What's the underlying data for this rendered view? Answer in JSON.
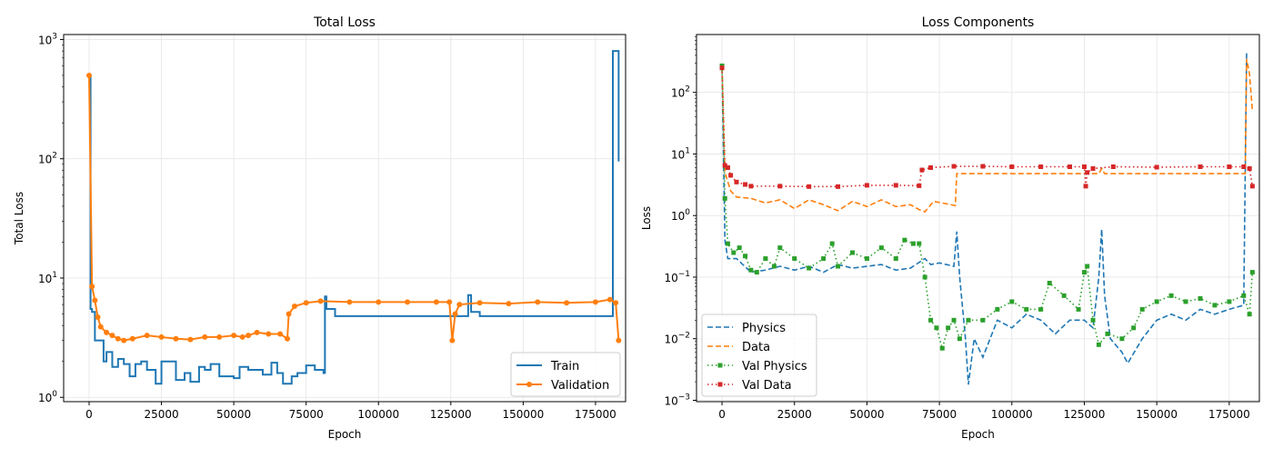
{
  "chart_data": [
    {
      "type": "line",
      "title": "Total Loss",
      "xlabel": "Epoch",
      "ylabel": "Total Loss",
      "yscale": "log",
      "xlim": [
        -8800,
        185400
      ],
      "ylim": [
        0.92,
        1100
      ],
      "grid": true,
      "legend": "lower-right",
      "xticks": [
        0,
        25000,
        50000,
        75000,
        100000,
        125000,
        150000,
        175000
      ],
      "yticks": [
        {
          "v": 1,
          "b": "10",
          "e": "0"
        },
        {
          "v": 10,
          "b": "10",
          "e": "1"
        },
        {
          "v": 100,
          "b": "10",
          "e": "2"
        },
        {
          "v": 1000,
          "b": "10",
          "e": "3"
        }
      ],
      "series": [
        {
          "name": "Train",
          "color": "#1f77b4",
          "style": "solid",
          "marker": "none",
          "step": true,
          "x": [
            0,
            500,
            1000,
            2000,
            5000,
            6000,
            8000,
            10000,
            12000,
            14000,
            16000,
            18000,
            20000,
            23000,
            25000,
            28000,
            30000,
            33000,
            35000,
            38000,
            40000,
            42000,
            45000,
            50000,
            52000,
            55000,
            60000,
            63000,
            65000,
            67000,
            70000,
            72000,
            75000,
            78000,
            81000,
            81500,
            82000,
            85000,
            130500,
            131000,
            132000,
            135000,
            180500,
            181000,
            183000
          ],
          "y": [
            500,
            5.5,
            5.2,
            3,
            2.0,
            2.4,
            1.8,
            2.1,
            1.9,
            1.5,
            1.9,
            2.0,
            1.7,
            1.3,
            2.0,
            2.0,
            1.4,
            1.6,
            1.35,
            1.8,
            1.7,
            1.9,
            1.5,
            1.45,
            1.8,
            1.7,
            1.55,
            1.95,
            1.6,
            1.3,
            1.5,
            1.6,
            1.85,
            1.7,
            1.6,
            7.0,
            5.5,
            4.8,
            4.8,
            7.2,
            5.2,
            4.8,
            4.8,
            800,
            95
          ]
        },
        {
          "name": "Validation",
          "color": "#ff7f0e",
          "style": "solid",
          "marker": "circle",
          "x": [
            0,
            1000,
            2000,
            3000,
            4000,
            6000,
            8000,
            10000,
            12000,
            15000,
            20000,
            25000,
            30000,
            35000,
            40000,
            45000,
            50000,
            53000,
            55000,
            58000,
            62000,
            66000,
            68500,
            69000,
            71000,
            75000,
            80000,
            90000,
            100000,
            110000,
            120000,
            124500,
            125500,
            126500,
            128000,
            135000,
            145000,
            155000,
            165000,
            175000,
            180000,
            182000,
            183000
          ],
          "y": [
            500,
            8.5,
            6.5,
            4.7,
            3.9,
            3.5,
            3.3,
            3.1,
            3.0,
            3.1,
            3.3,
            3.2,
            3.1,
            3.05,
            3.2,
            3.2,
            3.3,
            3.2,
            3.3,
            3.5,
            3.4,
            3.4,
            3.1,
            5.0,
            5.8,
            6.2,
            6.4,
            6.3,
            6.3,
            6.3,
            6.3,
            6.3,
            3.0,
            5.0,
            6.0,
            6.2,
            6.1,
            6.3,
            6.2,
            6.3,
            6.6,
            6.2,
            3.0
          ]
        }
      ]
    },
    {
      "type": "line",
      "title": "Loss Components",
      "xlabel": "Epoch",
      "ylabel": "Loss",
      "yscale": "log",
      "xlim": [
        -8800,
        185400
      ],
      "ylim": [
        0.00095,
        870
      ],
      "grid": true,
      "legend": "lower-left",
      "xticks": [
        0,
        25000,
        50000,
        75000,
        100000,
        125000,
        150000,
        175000
      ],
      "yticks": [
        {
          "v": 0.001,
          "b": "10",
          "e": "−3"
        },
        {
          "v": 0.01,
          "b": "10",
          "e": "−2"
        },
        {
          "v": 0.1,
          "b": "10",
          "e": "−1"
        },
        {
          "v": 1,
          "b": "10",
          "e": "0"
        },
        {
          "v": 10,
          "b": "10",
          "e": "1"
        },
        {
          "v": 100,
          "b": "10",
          "e": "2"
        }
      ],
      "series": [
        {
          "name": "Physics",
          "color": "#1f77b4",
          "style": "dashed",
          "marker": "none",
          "x": [
            0,
            1000,
            2000,
            5000,
            10000,
            15000,
            20000,
            25000,
            30000,
            35000,
            40000,
            45000,
            50000,
            55000,
            60000,
            65000,
            70000,
            72000,
            75000,
            80000,
            81000,
            82000,
            84000,
            85000,
            87000,
            90000,
            95000,
            100000,
            105000,
            110000,
            115000,
            120000,
            125000,
            128000,
            130000,
            131000,
            132000,
            134000,
            138000,
            140000,
            145000,
            150000,
            155000,
            160000,
            165000,
            170000,
            175000,
            180000,
            181000
          ],
          "y": [
            250,
            0.4,
            0.2,
            0.2,
            0.12,
            0.13,
            0.15,
            0.13,
            0.15,
            0.12,
            0.16,
            0.14,
            0.15,
            0.16,
            0.13,
            0.14,
            0.2,
            0.16,
            0.17,
            0.15,
            0.55,
            0.1,
            0.01,
            0.0018,
            0.01,
            0.005,
            0.02,
            0.015,
            0.025,
            0.02,
            0.012,
            0.02,
            0.02,
            0.015,
            0.1,
            0.6,
            0.05,
            0.01,
            0.006,
            0.004,
            0.01,
            0.02,
            0.025,
            0.02,
            0.03,
            0.025,
            0.03,
            0.035,
            450
          ]
        },
        {
          "name": "Data",
          "color": "#ff7f0e",
          "style": "dashed",
          "marker": "none",
          "x": [
            0,
            1000,
            3000,
            5000,
            10000,
            15000,
            20000,
            25000,
            30000,
            35000,
            40000,
            45000,
            50000,
            55000,
            60000,
            65000,
            68000,
            70000,
            73000,
            76000,
            80500,
            81000,
            130000,
            131000,
            132000,
            180500,
            181000,
            182000,
            183000
          ],
          "y": [
            250,
            5,
            2.5,
            2.0,
            1.9,
            1.6,
            1.8,
            1.3,
            1.8,
            1.5,
            1.2,
            1.7,
            1.4,
            1.8,
            1.4,
            1.5,
            1.25,
            1.15,
            1.7,
            1.6,
            1.45,
            4.8,
            4.8,
            5.8,
            4.8,
            4.8,
            350,
            200,
            50
          ]
        },
        {
          "name": "Val Physics",
          "color": "#2ca02c",
          "style": "dotted",
          "marker": "square",
          "x": [
            0,
            1000,
            2000,
            4000,
            6000,
            8000,
            10000,
            12000,
            15000,
            18000,
            20000,
            25000,
            30000,
            35000,
            38000,
            40000,
            45000,
            50000,
            55000,
            60000,
            63000,
            66000,
            68000,
            70000,
            72000,
            74000,
            76000,
            78000,
            80000,
            82000,
            85000,
            90000,
            95000,
            100000,
            105000,
            110000,
            113000,
            118000,
            123000,
            125000,
            126000,
            128000,
            130000,
            133000,
            138000,
            142000,
            145000,
            150000,
            155000,
            160000,
            165000,
            170000,
            175000,
            180000,
            182000,
            183000
          ],
          "y": [
            270,
            1.9,
            0.35,
            0.25,
            0.3,
            0.22,
            0.13,
            0.12,
            0.2,
            0.15,
            0.3,
            0.2,
            0.14,
            0.2,
            0.35,
            0.15,
            0.25,
            0.2,
            0.3,
            0.2,
            0.4,
            0.35,
            0.35,
            0.1,
            0.02,
            0.015,
            0.007,
            0.015,
            0.02,
            0.01,
            0.02,
            0.02,
            0.03,
            0.04,
            0.03,
            0.03,
            0.08,
            0.05,
            0.03,
            0.12,
            0.15,
            0.02,
            0.008,
            0.012,
            0.01,
            0.015,
            0.03,
            0.04,
            0.05,
            0.04,
            0.045,
            0.035,
            0.04,
            0.05,
            0.025,
            0.12
          ]
        },
        {
          "name": "Val Data",
          "color": "#d62728",
          "style": "dotted",
          "marker": "square",
          "x": [
            0,
            1000,
            2000,
            3000,
            5000,
            8000,
            10000,
            20000,
            30000,
            40000,
            50000,
            60000,
            68000,
            69000,
            72000,
            80000,
            90000,
            100000,
            110000,
            120000,
            125000,
            125500,
            126000,
            128000,
            135000,
            150000,
            165000,
            175000,
            180000,
            182000,
            183000
          ],
          "y": [
            250,
            6.5,
            6,
            4.5,
            3.5,
            3.2,
            3.0,
            3.0,
            2.95,
            2.95,
            3.1,
            3.1,
            3.05,
            5.5,
            6.0,
            6.3,
            6.3,
            6.2,
            6.2,
            6.2,
            6.2,
            3.0,
            5.0,
            5.8,
            6.2,
            6.1,
            6.2,
            6.2,
            6.2,
            5.8,
            3.0
          ]
        }
      ]
    }
  ]
}
